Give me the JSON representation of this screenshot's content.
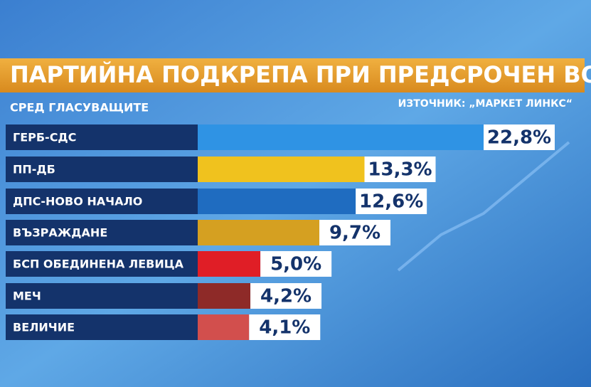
{
  "chart_data": {
    "type": "bar",
    "orientation": "horizontal",
    "title": "ПАРТИЙНА ПОДКРЕПА ПРИ ПРЕДСРОЧЕН ВОТ",
    "subtitle": "СРЕД ГЛАСУВАЩИТЕ",
    "source": "ИЗТОЧНИК: „МАРКЕТ ЛИНКС“",
    "categories": [
      "ГЕРБ-СДС",
      "ПП-ДБ",
      "ДПС-НОВО НАЧАЛО",
      "ВЪЗРАЖДАНЕ",
      "БСП ОБЕДИНЕНА ЛЕВИЦА",
      "МЕЧ",
      "ВЕЛИЧИЕ"
    ],
    "values": [
      22.8,
      13.3,
      12.6,
      9.7,
      5.0,
      4.2,
      4.1
    ],
    "value_labels": [
      "22,8%",
      "13,3%",
      "12,6%",
      "9,7%",
      "5,0%",
      "4,2%",
      "4,1%"
    ],
    "colors": [
      "#2f93e4",
      "#f0c21e",
      "#1f6cc0",
      "#d5a021",
      "#e01e26",
      "#8e2a28",
      "#d24f4d"
    ]
  }
}
